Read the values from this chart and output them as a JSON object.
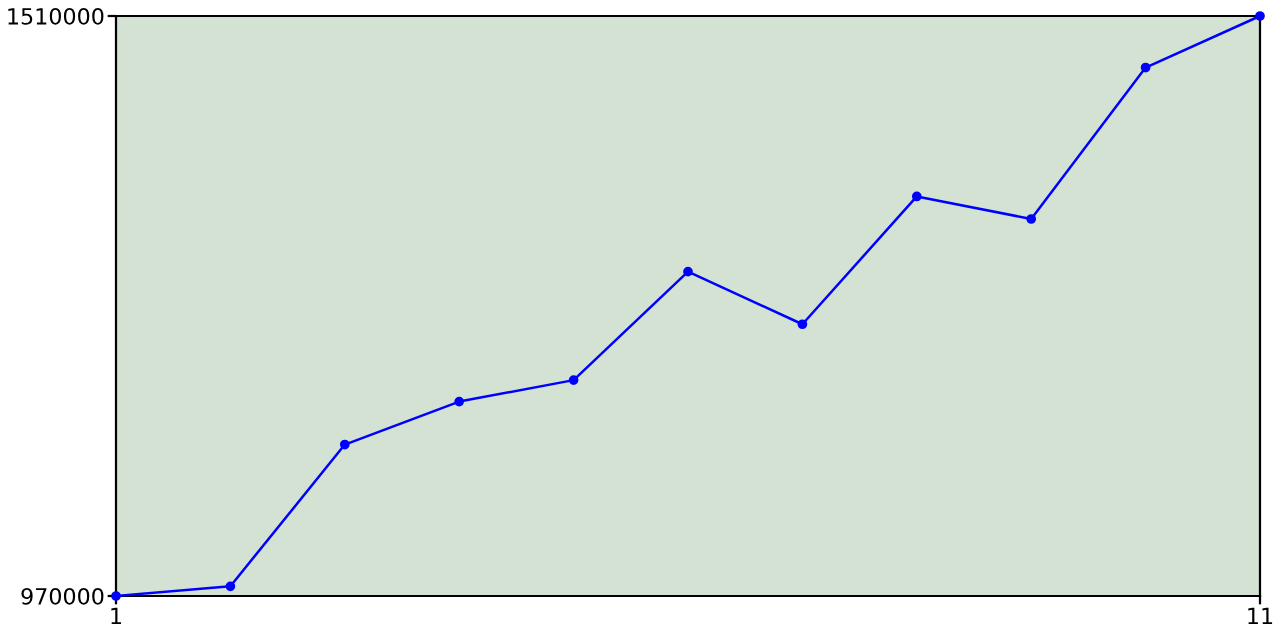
{
  "chart_data": {
    "type": "line",
    "x": [
      1,
      2,
      3,
      4,
      5,
      6,
      7,
      8,
      9,
      10,
      11
    ],
    "series": [
      {
        "color": "#0000ff",
        "values": [
          970000,
          979000,
          1111000,
          1151000,
          1171000,
          1272000,
          1223000,
          1342000,
          1321000,
          1462000,
          1510000
        ]
      }
    ],
    "xlim": [
      1,
      11
    ],
    "xticks": [
      1,
      11
    ],
    "ylim": [
      970000,
      1510000
    ],
    "yticks": [
      970000,
      1510000
    ],
    "marker": "circle",
    "line_style": "solid",
    "grid": false,
    "legend": false
  }
}
